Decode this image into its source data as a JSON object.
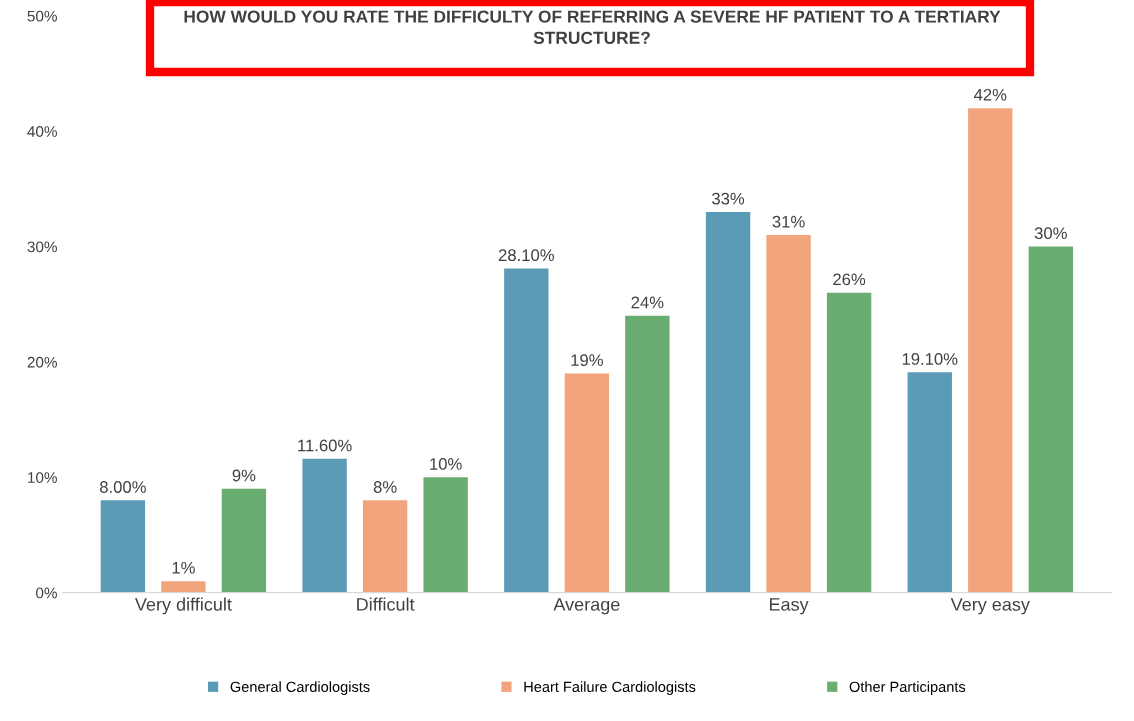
{
  "chart_data": {
    "type": "bar",
    "title": "HOW WOULD YOU RATE THE DIFFICULTY OF REFERRING A SEVERE HF PATIENT TO A TERTIARY STRUCTURE?",
    "categories": [
      "Very difficult",
      "Difficult",
      "Average",
      "Easy",
      "Very easy"
    ],
    "series": [
      {
        "name": "General Cardiologists",
        "color": "#5b9bb6",
        "values": [
          8,
          11.6,
          28.1,
          33,
          19.1
        ],
        "value_labels": [
          "8.00%",
          "11.60%",
          "28.10%",
          "33%",
          "19.10%"
        ]
      },
      {
        "name": "Heart Failure Cardiologists",
        "color": "#f2a57c",
        "values": [
          1,
          8,
          19,
          31,
          42
        ],
        "value_labels": [
          "1%",
          "8%",
          "19%",
          "31%",
          "42%"
        ]
      },
      {
        "name": "Other Participants",
        "color": "#6aad70",
        "values": [
          9,
          10,
          24,
          26,
          30
        ],
        "value_labels": [
          "9%",
          "10%",
          "24%",
          "26%",
          "30%"
        ]
      }
    ],
    "ylim": [
      0,
      50
    ],
    "yticks": [
      {
        "value": 0,
        "label": "0%"
      },
      {
        "value": 10,
        "label": "10%"
      },
      {
        "value": 20,
        "label": "20%"
      },
      {
        "value": 30,
        "label": "30%"
      },
      {
        "value": 40,
        "label": "40%"
      },
      {
        "value": 50,
        "label": "50%"
      }
    ],
    "grid": false,
    "legend": "bottom"
  }
}
